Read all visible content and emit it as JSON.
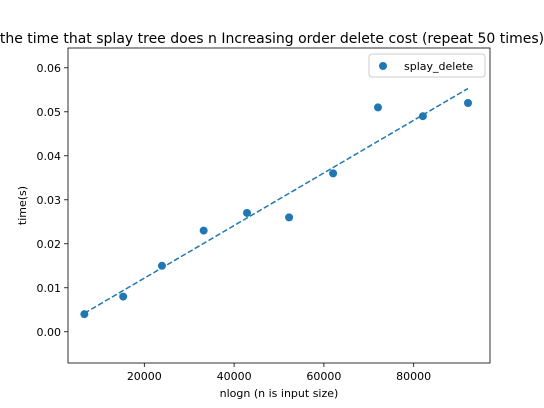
{
  "chart_data": {
    "type": "scatter",
    "title": "the time that splay tree does n Increasing order delete cost (repeat 50 times)",
    "xlabel": "nlogn (n is input size)",
    "ylabel": "time(s)",
    "xlim": [
      3000,
      97000
    ],
    "ylim": [
      -0.0071,
      0.0645
    ],
    "x_ticks": [
      20000,
      40000,
      60000,
      80000
    ],
    "x_tick_labels": [
      "20000",
      "40000",
      "60000",
      "80000"
    ],
    "y_ticks": [
      0.0,
      0.01,
      0.02,
      0.03,
      0.04,
      0.05,
      0.06
    ],
    "y_tick_labels": [
      "0.00",
      "0.01",
      "0.02",
      "0.03",
      "0.04",
      "0.05",
      "0.06"
    ],
    "grid": false,
    "legend_position": "top-right",
    "series": [
      {
        "name": "splay_delete",
        "color": "#1f77b4",
        "x": [
          6644,
          15290,
          23932,
          33219,
          42877,
          52250,
          62050,
          72050,
          82050,
          92100
        ],
        "y": [
          0.004,
          0.008,
          0.015,
          0.023,
          0.027,
          0.026,
          0.036,
          0.051,
          0.049,
          0.052
        ]
      }
    ],
    "trend_line": {
      "style": "dashed",
      "color": "#1f77b4",
      "x": [
        6644,
        92100
      ],
      "y": [
        0.0042,
        0.0553
      ]
    }
  }
}
